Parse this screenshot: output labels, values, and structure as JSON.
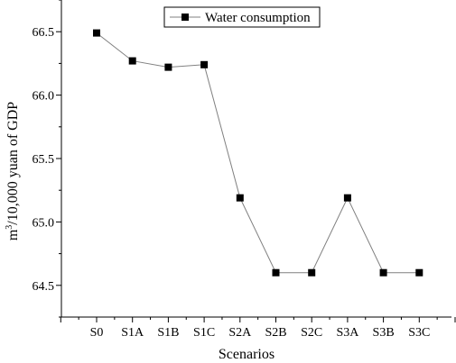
{
  "chart_data": {
    "type": "line",
    "categories": [
      "S0",
      "S1A",
      "S1B",
      "S1C",
      "S2A",
      "S2B",
      "S2C",
      "S3A",
      "S3B",
      "S3C"
    ],
    "series": [
      {
        "name": "Water consumption",
        "values": [
          66.49,
          66.27,
          66.22,
          66.24,
          65.19,
          64.6,
          64.6,
          65.19,
          64.6,
          64.6
        ],
        "color": "#000000",
        "line_color": "#808080",
        "marker": "square"
      }
    ],
    "xlabel": "Scenarios",
    "ylabel_base": "m",
    "ylabel_sup": "3",
    "ylabel_rest": "/10,000 yuan of GDP",
    "ylim": [
      64.25,
      66.75
    ],
    "yticks": [
      "64.5",
      "65.0",
      "65.5",
      "66.0",
      "66.5"
    ],
    "legend_position": "top-center",
    "grid": false
  }
}
